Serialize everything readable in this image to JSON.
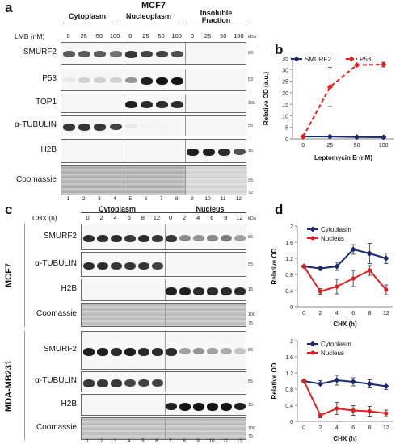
{
  "panel_a": {
    "letter": "a",
    "title": "MCF7",
    "groups": [
      "Cytoplasm",
      "Nucleoplasm",
      "Insoluble\nFraction"
    ],
    "treatment_label": "LMB (nM)",
    "doses": [
      "0",
      "25",
      "50",
      "100",
      "0",
      "25",
      "50",
      "100",
      "0",
      "25",
      "50",
      "100"
    ],
    "kda_label": "kDa",
    "rows": [
      {
        "label": "SMURF2",
        "marker": "86"
      },
      {
        "label": "P53",
        "marker": "53"
      },
      {
        "label": "TOP1",
        "marker": "100"
      },
      {
        "label": "α-TUBULIN",
        "marker": "55"
      },
      {
        "label": "H2B",
        "marker": "15"
      },
      {
        "label": "Coomassie",
        "marker": "95",
        "marker2": "72"
      }
    ],
    "lanes": [
      "1",
      "2",
      "3",
      "4",
      "5",
      "6",
      "7",
      "8",
      "9",
      "10",
      "11",
      "12"
    ]
  },
  "panel_c": {
    "letter": "c",
    "groups": [
      "Cytoplasm",
      "Nucleus"
    ],
    "treatment_label": "CHX (h)",
    "times": [
      "0",
      "2",
      "4",
      "6",
      "8",
      "12",
      "0",
      "2",
      "4",
      "6",
      "8",
      "12"
    ],
    "kda_label": "kDa",
    "cell_lines": [
      {
        "name": "MCF7",
        "rows": [
          {
            "label": "SMURF2",
            "marker": "86"
          },
          {
            "label": "α-TUBULIN",
            "marker": "55"
          },
          {
            "label": "H2B",
            "marker": "15"
          },
          {
            "label": "Coomassie",
            "marker": "100",
            "marker2": "75"
          }
        ]
      },
      {
        "name": "MDA-MB231",
        "rows": [
          {
            "label": "SMURF2",
            "marker": "86"
          },
          {
            "label": "α-TUBULIN",
            "marker": "55"
          },
          {
            "label": "H2B",
            "marker": "15"
          },
          {
            "label": "Coomassie",
            "marker": "100",
            "marker2": "75"
          }
        ]
      }
    ],
    "lanes": [
      "1",
      "2",
      "3",
      "4",
      "5",
      "6",
      "7",
      "8",
      "9",
      "10",
      "11",
      "12"
    ]
  },
  "colors": {
    "smurf2": "#1a2a6c",
    "p53": "#e02020",
    "cytoplasm": "#1a2a6c",
    "nucleus": "#e02020"
  },
  "chart_data": [
    {
      "panel": "b",
      "type": "line",
      "x": [
        0,
        25,
        50,
        100
      ],
      "xlabel": "Leptomycin B (nM)",
      "ylabel": "Relative OD (a.u.)",
      "ylim": [
        0,
        35
      ],
      "yticks": [
        0,
        5,
        10,
        15,
        20,
        25,
        30,
        35
      ],
      "series": [
        {
          "name": "SMURF2",
          "values": [
            1,
            1,
            0.8,
            0.7
          ],
          "errors": [
            0.3,
            0.3,
            0.3,
            0.3
          ],
          "style": "solid"
        },
        {
          "name": "P53",
          "values": [
            1,
            22.5,
            32,
            32.2
          ],
          "errors": [
            0,
            8.5,
            0,
            1
          ],
          "style": "dashed"
        }
      ],
      "legend": "top"
    },
    {
      "panel": "d",
      "type": "line",
      "x": [
        0,
        2,
        4,
        6,
        8,
        12
      ],
      "xlabel": "CHX (h)",
      "ylabel": "Relative OD",
      "ylim": [
        0,
        2
      ],
      "yticks": [
        0,
        0.4,
        0.8,
        1.2,
        1.6,
        2
      ],
      "series": [
        {
          "name": "Cytoplasm",
          "values": [
            1,
            0.95,
            1.0,
            1.42,
            1.32,
            1.2
          ],
          "errors": [
            0.03,
            0.05,
            0.1,
            0.12,
            0.25,
            0.13
          ]
        },
        {
          "name": "Nucleus",
          "values": [
            1,
            0.38,
            0.5,
            0.7,
            0.9,
            0.42
          ],
          "errors": [
            0.03,
            0.07,
            0.18,
            0.2,
            0.12,
            0.12
          ]
        }
      ],
      "legend": "top-left"
    },
    {
      "panel": "d2",
      "type": "line",
      "x": [
        0,
        2,
        4,
        6,
        8,
        12
      ],
      "xlabel": "CHX (h)",
      "ylabel": "Relative OD",
      "ylim": [
        0,
        2
      ],
      "yticks": [
        0,
        0.4,
        0.8,
        1.2,
        1.6,
        2
      ],
      "series": [
        {
          "name": "Cytoplasm",
          "values": [
            1,
            0.93,
            1.02,
            0.98,
            0.93,
            0.87
          ],
          "errors": [
            0.03,
            0.08,
            0.12,
            0.1,
            0.1,
            0.08
          ]
        },
        {
          "name": "Nucleus",
          "values": [
            1,
            0.15,
            0.32,
            0.27,
            0.25,
            0.2
          ],
          "errors": [
            0.03,
            0.06,
            0.15,
            0.12,
            0.12,
            0.08
          ]
        }
      ],
      "legend": "top-left"
    }
  ],
  "panel_b": {
    "letter": "b"
  },
  "panel_d": {
    "letter": "d"
  }
}
